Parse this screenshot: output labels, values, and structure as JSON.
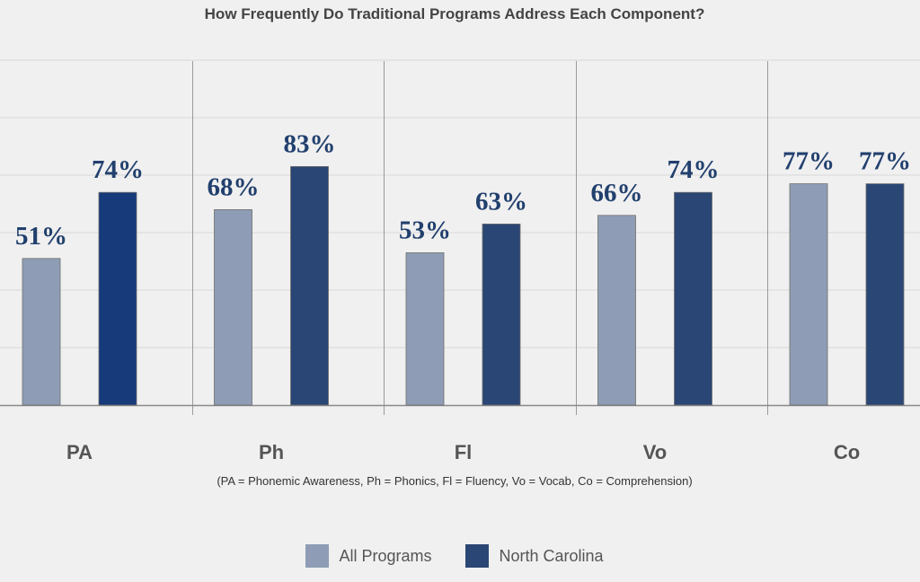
{
  "chart_data": {
    "type": "bar",
    "title": "How Frequently Do Traditional Programs Address Each Component?",
    "categories": [
      "PA",
      "Ph",
      "Fl",
      "Vo",
      "Co"
    ],
    "series": [
      {
        "name": "All Programs",
        "values": [
          51,
          68,
          53,
          66,
          77
        ],
        "labels": [
          "51%",
          "68%",
          "53%",
          "66%",
          "77%"
        ],
        "color": "#8e9db5"
      },
      {
        "name": "North Carolina",
        "values": [
          74,
          83,
          63,
          74,
          77
        ],
        "labels": [
          "74%",
          "83%",
          "63%",
          "74%",
          "77%"
        ],
        "color": "#2a4674",
        "point_colors": [
          "#163a7a",
          "#2a4674",
          "#2a4674",
          "#2a4674",
          "#2a4674"
        ]
      }
    ],
    "ylim": [
      0,
      120
    ],
    "grid": true,
    "legend": "bottom-center",
    "footnote": "(PA = Phonemic Awareness, Ph = Phonics, Fl = Fluency, Vo = Vocab, Co = Comprehension)"
  }
}
